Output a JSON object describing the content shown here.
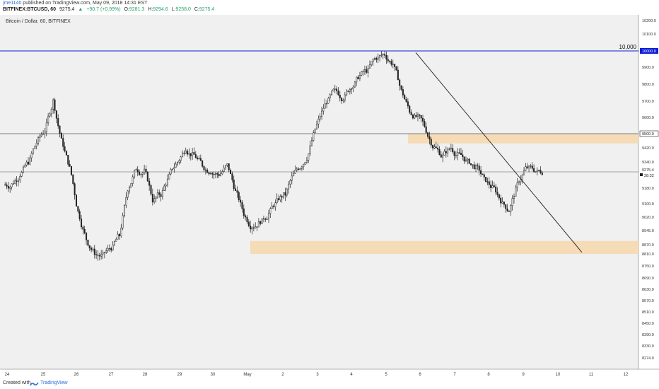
{
  "header": {
    "user": "jme1140",
    "published": "published on TradingView.com, May 09, 2018 14:31 EST",
    "symbol": "BITFINEX:BTCUSD, 60",
    "last": "9275.4",
    "change_arrow": "▲",
    "change": "+90.7 (+0.99%)",
    "o_label": "O:",
    "o_val": "9281.3",
    "h_label": "H:",
    "h_val": "9294.6",
    "l_label": "L:",
    "l_val": "9258.0",
    "c_label": "C:",
    "c_val": "9275.4"
  },
  "pane_label": "Bitcoin / Dollar, 60, BITFINEX",
  "footer": {
    "created_with": "Created with",
    "brand": "TradingView"
  },
  "chart_data": {
    "type": "candlestick",
    "title": "Bitcoin / Dollar, 60, BITFINEX",
    "y_ticks": [
      "10200.0",
      "10100.0",
      "10000.0",
      "9900.0",
      "9800.0",
      "9700.0",
      "9600.0",
      "9500.0",
      "9420.0",
      "9340.0",
      "9275.4",
      "9180.0",
      "9100.0",
      "9020.0",
      "8945.0",
      "8870.0",
      "8810.0",
      "8750.0",
      "8690.0",
      "8630.0",
      "8570.0",
      "8510.0",
      "8450.0",
      "8390.0",
      "8330.0",
      "8274.0"
    ],
    "x_ticks": [
      "24",
      "25",
      "26",
      "27",
      "28",
      "29",
      "30",
      "May",
      "2",
      "3",
      "4",
      "5",
      "6",
      "7",
      "8",
      "9",
      "10",
      "11",
      "12"
    ],
    "price_labels": [
      {
        "text": "10000.0",
        "color": "#0d1cd6"
      },
      {
        "text": "9500.0",
        "color": "#222222"
      },
      {
        "text": "9275.4",
        "color": "#ffffff"
      },
      {
        "text": "28:32",
        "color": "#ffffff"
      }
    ],
    "annotation": "10,000",
    "horizontal_lines": [
      10000,
      9500,
      9275
    ],
    "zones": [
      {
        "from": 9500,
        "to": 9445,
        "color": "#f5d9b0"
      },
      {
        "from": 8890,
        "to": 8810,
        "color": "#f5d9b0"
      }
    ],
    "trendline": {
      "from": [
        "May 6",
        9990
      ],
      "to": [
        "May 10",
        8820
      ]
    },
    "approx_closes": [
      9200,
      9260,
      9340,
      9450,
      9520,
      9700,
      9460,
      9300,
      9050,
      8900,
      8820,
      8800,
      8850,
      8920,
      9180,
      9300,
      9280,
      9120,
      9150,
      9250,
      9340,
      9420,
      9380,
      9320,
      9280,
      9260,
      9320,
      9160,
      9040,
      8970,
      9000,
      9040,
      9110,
      9150,
      9260,
      9320,
      9420,
      9580,
      9700,
      9760,
      9720,
      9790,
      9850,
      9880,
      9960,
      9980,
      9920,
      9760,
      9640,
      9600,
      9520,
      9420,
      9370,
      9420,
      9380,
      9340,
      9300,
      9230,
      9180,
      9120,
      9060,
      9200,
      9300,
      9290,
      9275.4
    ],
    "colors": {
      "up": "#ffffff",
      "down": "#222222",
      "wick": "#222222",
      "bg": "#f0f0f0",
      "trend": "#222222",
      "hline_blue": "#0d1cd6",
      "hline_gray": "#555555"
    }
  }
}
